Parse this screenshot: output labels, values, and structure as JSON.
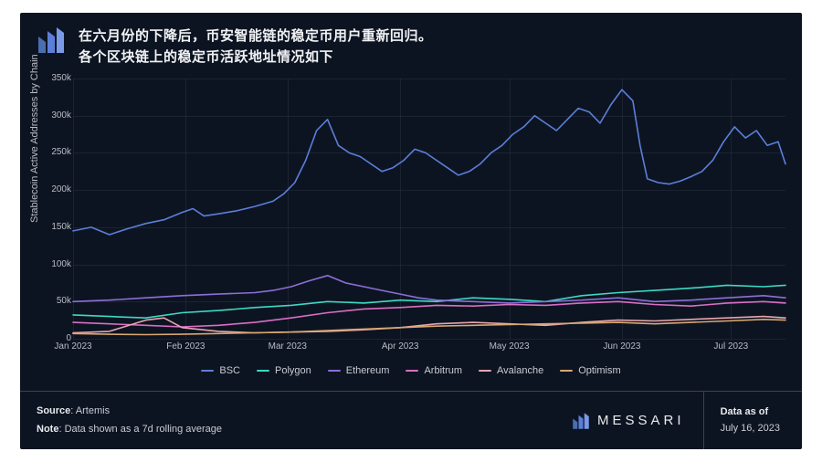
{
  "header": {
    "title_line1": "在六月份的下降后，币安智能链的稳定币用户重新回归。",
    "title_line2": "各个区块链上的稳定币活跃地址情况如下"
  },
  "chart": {
    "type": "line",
    "y_axis_label": "Stablecoin Active Addresses by Chain",
    "ylim": [
      0,
      350000
    ],
    "y_ticks": [
      0,
      50000,
      100000,
      150000,
      200000,
      250000,
      300000,
      350000
    ],
    "y_tick_labels": [
      "0",
      "50k",
      "100k",
      "150k",
      "200k",
      "250k",
      "300k",
      "350k"
    ],
    "x_ticks": [
      0,
      31,
      59,
      90,
      120,
      151,
      181
    ],
    "x_tick_labels": [
      "Jan 2023",
      "Feb 2023",
      "Mar 2023",
      "Apr 2023",
      "May 2023",
      "Jun 2023",
      "Jul 2023"
    ],
    "x_max": 196,
    "background_color": "#0d1421",
    "grid_color": "#2a3142",
    "text_color": "#b8bcc4",
    "series": [
      {
        "name": "BSC",
        "color": "#5b7fd9",
        "data": [
          [
            0,
            145000
          ],
          [
            5,
            150000
          ],
          [
            10,
            140000
          ],
          [
            15,
            148000
          ],
          [
            20,
            155000
          ],
          [
            25,
            160000
          ],
          [
            30,
            170000
          ],
          [
            33,
            175000
          ],
          [
            36,
            165000
          ],
          [
            40,
            168000
          ],
          [
            45,
            172000
          ],
          [
            50,
            178000
          ],
          [
            55,
            185000
          ],
          [
            58,
            195000
          ],
          [
            61,
            210000
          ],
          [
            64,
            240000
          ],
          [
            67,
            280000
          ],
          [
            70,
            295000
          ],
          [
            73,
            260000
          ],
          [
            76,
            250000
          ],
          [
            79,
            245000
          ],
          [
            82,
            235000
          ],
          [
            85,
            225000
          ],
          [
            88,
            230000
          ],
          [
            91,
            240000
          ],
          [
            94,
            255000
          ],
          [
            97,
            250000
          ],
          [
            100,
            240000
          ],
          [
            103,
            230000
          ],
          [
            106,
            220000
          ],
          [
            109,
            225000
          ],
          [
            112,
            235000
          ],
          [
            115,
            250000
          ],
          [
            118,
            260000
          ],
          [
            121,
            275000
          ],
          [
            124,
            285000
          ],
          [
            127,
            300000
          ],
          [
            130,
            290000
          ],
          [
            133,
            280000
          ],
          [
            136,
            295000
          ],
          [
            139,
            310000
          ],
          [
            142,
            305000
          ],
          [
            145,
            290000
          ],
          [
            148,
            315000
          ],
          [
            151,
            335000
          ],
          [
            154,
            320000
          ],
          [
            156,
            260000
          ],
          [
            158,
            215000
          ],
          [
            161,
            210000
          ],
          [
            164,
            208000
          ],
          [
            167,
            212000
          ],
          [
            170,
            218000
          ],
          [
            173,
            225000
          ],
          [
            176,
            240000
          ],
          [
            179,
            265000
          ],
          [
            182,
            285000
          ],
          [
            185,
            270000
          ],
          [
            188,
            280000
          ],
          [
            191,
            260000
          ],
          [
            194,
            265000
          ],
          [
            196,
            235000
          ]
        ]
      },
      {
        "name": "Polygon",
        "color": "#3dd9c4",
        "data": [
          [
            0,
            32000
          ],
          [
            10,
            30000
          ],
          [
            20,
            28000
          ],
          [
            30,
            35000
          ],
          [
            40,
            38000
          ],
          [
            50,
            42000
          ],
          [
            60,
            45000
          ],
          [
            70,
            50000
          ],
          [
            80,
            48000
          ],
          [
            90,
            52000
          ],
          [
            100,
            50000
          ],
          [
            110,
            55000
          ],
          [
            120,
            53000
          ],
          [
            130,
            50000
          ],
          [
            140,
            58000
          ],
          [
            150,
            62000
          ],
          [
            160,
            65000
          ],
          [
            170,
            68000
          ],
          [
            180,
            72000
          ],
          [
            190,
            70000
          ],
          [
            196,
            72000
          ]
        ]
      },
      {
        "name": "Ethereum",
        "color": "#8c6fd9",
        "data": [
          [
            0,
            50000
          ],
          [
            10,
            52000
          ],
          [
            20,
            55000
          ],
          [
            30,
            58000
          ],
          [
            40,
            60000
          ],
          [
            50,
            62000
          ],
          [
            55,
            65000
          ],
          [
            60,
            70000
          ],
          [
            65,
            78000
          ],
          [
            70,
            85000
          ],
          [
            75,
            75000
          ],
          [
            80,
            70000
          ],
          [
            85,
            65000
          ],
          [
            90,
            60000
          ],
          [
            95,
            55000
          ],
          [
            100,
            52000
          ],
          [
            110,
            50000
          ],
          [
            120,
            48000
          ],
          [
            130,
            50000
          ],
          [
            140,
            52000
          ],
          [
            150,
            55000
          ],
          [
            160,
            50000
          ],
          [
            170,
            52000
          ],
          [
            180,
            55000
          ],
          [
            190,
            58000
          ],
          [
            196,
            55000
          ]
        ]
      },
      {
        "name": "Arbitrum",
        "color": "#d96fc4",
        "data": [
          [
            0,
            22000
          ],
          [
            10,
            20000
          ],
          [
            20,
            18000
          ],
          [
            30,
            16000
          ],
          [
            40,
            18000
          ],
          [
            50,
            22000
          ],
          [
            60,
            28000
          ],
          [
            70,
            35000
          ],
          [
            80,
            40000
          ],
          [
            90,
            42000
          ],
          [
            100,
            45000
          ],
          [
            110,
            44000
          ],
          [
            120,
            46000
          ],
          [
            130,
            45000
          ],
          [
            140,
            48000
          ],
          [
            150,
            50000
          ],
          [
            160,
            46000
          ],
          [
            170,
            44000
          ],
          [
            180,
            48000
          ],
          [
            190,
            50000
          ],
          [
            196,
            48000
          ]
        ]
      },
      {
        "name": "Avalanche",
        "color": "#e8a5b0",
        "data": [
          [
            0,
            8000
          ],
          [
            10,
            10000
          ],
          [
            20,
            25000
          ],
          [
            25,
            28000
          ],
          [
            30,
            15000
          ],
          [
            40,
            10000
          ],
          [
            50,
            8000
          ],
          [
            60,
            9000
          ],
          [
            70,
            10000
          ],
          [
            80,
            12000
          ],
          [
            90,
            15000
          ],
          [
            100,
            20000
          ],
          [
            110,
            22000
          ],
          [
            120,
            20000
          ],
          [
            130,
            18000
          ],
          [
            140,
            22000
          ],
          [
            150,
            25000
          ],
          [
            160,
            24000
          ],
          [
            170,
            26000
          ],
          [
            180,
            28000
          ],
          [
            190,
            30000
          ],
          [
            196,
            28000
          ]
        ]
      },
      {
        "name": "Optimism",
        "color": "#d9a86f",
        "data": [
          [
            0,
            7000
          ],
          [
            10,
            6000
          ],
          [
            20,
            5500
          ],
          [
            30,
            6000
          ],
          [
            40,
            7000
          ],
          [
            50,
            8000
          ],
          [
            60,
            9000
          ],
          [
            70,
            11000
          ],
          [
            80,
            13000
          ],
          [
            90,
            15000
          ],
          [
            100,
            17000
          ],
          [
            110,
            18000
          ],
          [
            120,
            19000
          ],
          [
            130,
            20000
          ],
          [
            140,
            21000
          ],
          [
            150,
            22000
          ],
          [
            160,
            20000
          ],
          [
            170,
            22000
          ],
          [
            180,
            24000
          ],
          [
            190,
            26000
          ],
          [
            196,
            25000
          ]
        ]
      }
    ]
  },
  "legend": {
    "items": [
      "BSC",
      "Polygon",
      "Ethereum",
      "Arbitrum",
      "Avalanche",
      "Optimism"
    ]
  },
  "footer": {
    "source_label": "Source",
    "source_value": ": Artemis",
    "note_label": "Note",
    "note_value": ": Data shown as a 7d rolling average",
    "brand": "MESSARI",
    "data_as_of_label": "Data as of",
    "data_as_of_value": "July 16, 2023"
  }
}
